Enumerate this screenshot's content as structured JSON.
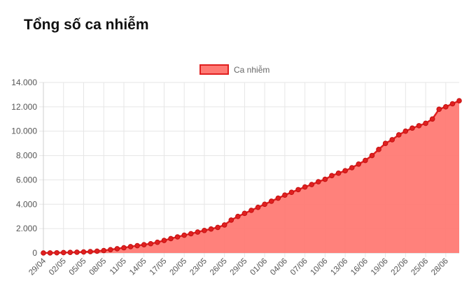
{
  "title": "Tổng số ca nhiễm",
  "chart_data": {
    "type": "area",
    "legend": {
      "label": "Ca nhiễm",
      "placement": "top-center"
    },
    "colors": {
      "line": "#e02020",
      "fill": "#ff7a74",
      "point": "#e02020"
    },
    "ylim": [
      0,
      14000
    ],
    "yticks": [
      0,
      2000,
      4000,
      6000,
      8000,
      10000,
      12000,
      14000
    ],
    "ytick_labels": [
      "0",
      "2.000",
      "4.000",
      "6.000",
      "8.000",
      "10.000",
      "12.000",
      "14.000"
    ],
    "grid": true,
    "x_tick_labels": [
      "29/04",
      "02/05",
      "05/05",
      "08/05",
      "11/05",
      "14/05",
      "17/05",
      "20/05",
      "23/05",
      "26/05",
      "29/05",
      "01/06",
      "04/06",
      "07/06",
      "10/06",
      "13/06",
      "16/06",
      "19/06",
      "22/06",
      "25/06",
      "28/06"
    ],
    "series": [
      {
        "name": "Ca nhiễm",
        "x_range": [
          "29/04",
          "28/06"
        ],
        "values": [
          0,
          5,
          15,
          30,
          45,
          60,
          85,
          110,
          150,
          200,
          270,
          350,
          430,
          520,
          600,
          680,
          760,
          880,
          1030,
          1180,
          1320,
          1460,
          1580,
          1720,
          1850,
          1970,
          2100,
          2300,
          2700,
          3000,
          3250,
          3500,
          3750,
          4000,
          4250,
          4500,
          4750,
          4980,
          5200,
          5420,
          5620,
          5850,
          6050,
          6350,
          6550,
          6750,
          7000,
          7300,
          7600,
          8000,
          8500,
          9000,
          9300,
          9700,
          10000,
          10250,
          10450,
          10650,
          11000,
          11800,
          12000,
          12250,
          12500
        ]
      }
    ]
  }
}
